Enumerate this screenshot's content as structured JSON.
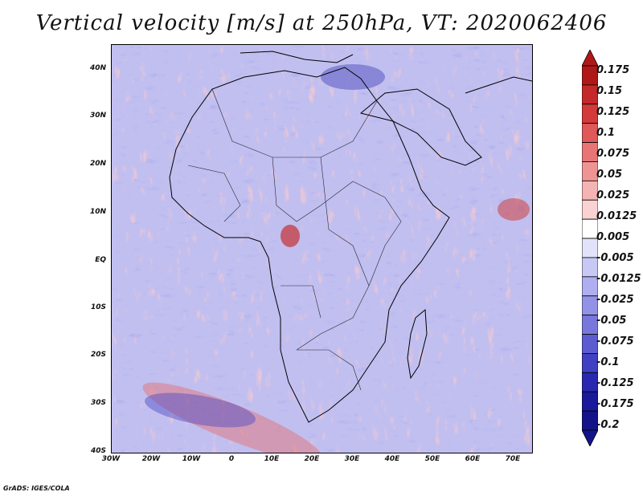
{
  "title": "Vertical velocity [m/s] at 250hPa, VT: 2020062406",
  "footer": "GrADS: IGES/COLA",
  "map": {
    "lon_range": [
      -30,
      75
    ],
    "lat_range": [
      -40,
      45
    ],
    "lat_ticks": [
      "40N",
      "30N",
      "20N",
      "10N",
      "EQ",
      "10S",
      "20S",
      "30S",
      "40S"
    ],
    "lon_ticks": [
      "30W",
      "20W",
      "10W",
      "0",
      "10E",
      "20E",
      "30E",
      "40E",
      "50E",
      "60E",
      "70E"
    ]
  },
  "colorbar": {
    "levels": [
      "0.175",
      "0.15",
      "0.125",
      "0.1",
      "0.075",
      "0.05",
      "0.025",
      "0.0125",
      "0.005",
      "-0.005",
      "-0.0125",
      "-0.025",
      "-0.05",
      "-0.075",
      "-0.1",
      "-0.125",
      "-0.175",
      "-0.2"
    ],
    "colors": [
      "#b01818",
      "#c42828",
      "#d43a3a",
      "#e05858",
      "#e87575",
      "#ef9494",
      "#f5b4b4",
      "#fad2d2",
      "#ffffff",
      "#e2e2fa",
      "#c8c8f5",
      "#aeaef0",
      "#9292e6",
      "#7878dc",
      "#5c5cd0",
      "#4040c2",
      "#2828b0",
      "#1a1a9a",
      "#14148a"
    ]
  }
}
